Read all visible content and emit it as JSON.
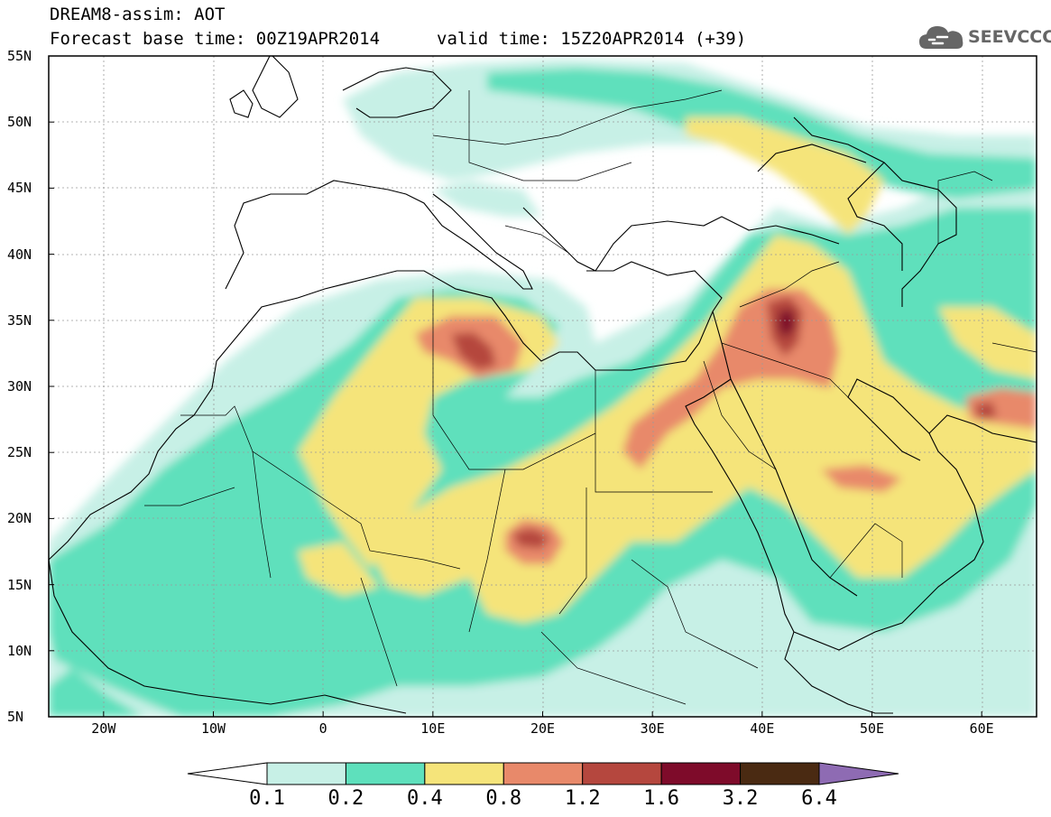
{
  "title": {
    "line1": "DREAM8-assim: AOT",
    "line2": "Forecast base time: 00Z19APR2014",
    "valid": "valid time: 15Z20APR2014 (+39)"
  },
  "logo": {
    "text": "SEEVCCC",
    "icon": "cloud-icon"
  },
  "map": {
    "lon_range": [
      -25,
      65
    ],
    "lat_range": [
      5,
      55
    ],
    "lat_ticks": [
      {
        "value": 55,
        "label": "55N"
      },
      {
        "value": 50,
        "label": "50N"
      },
      {
        "value": 45,
        "label": "45N"
      },
      {
        "value": 40,
        "label": "40N"
      },
      {
        "value": 35,
        "label": "35N"
      },
      {
        "value": 30,
        "label": "30N"
      },
      {
        "value": 25,
        "label": "25N"
      },
      {
        "value": 20,
        "label": "20N"
      },
      {
        "value": 15,
        "label": "15N"
      },
      {
        "value": 10,
        "label": "10N"
      },
      {
        "value": 5,
        "label": "5N"
      }
    ],
    "lon_ticks": [
      {
        "value": -20,
        "label": "20W"
      },
      {
        "value": -10,
        "label": "10W"
      },
      {
        "value": 0,
        "label": "0"
      },
      {
        "value": 10,
        "label": "10E"
      },
      {
        "value": 20,
        "label": "20E"
      },
      {
        "value": 30,
        "label": "30E"
      },
      {
        "value": 40,
        "label": "40E"
      },
      {
        "value": 50,
        "label": "50E"
      },
      {
        "value": 60,
        "label": "60E"
      }
    ]
  },
  "colorbar": {
    "levels": [
      "0.1",
      "0.2",
      "0.4",
      "0.8",
      "1.2",
      "1.6",
      "3.2",
      "6.4"
    ],
    "colors": [
      "#ffffff",
      "#c7f0e6",
      "#5ee0bc",
      "#f5e47a",
      "#e8896a",
      "#b5473e",
      "#7e0b2a",
      "#4a2a12",
      "#8e6bb3"
    ]
  }
}
